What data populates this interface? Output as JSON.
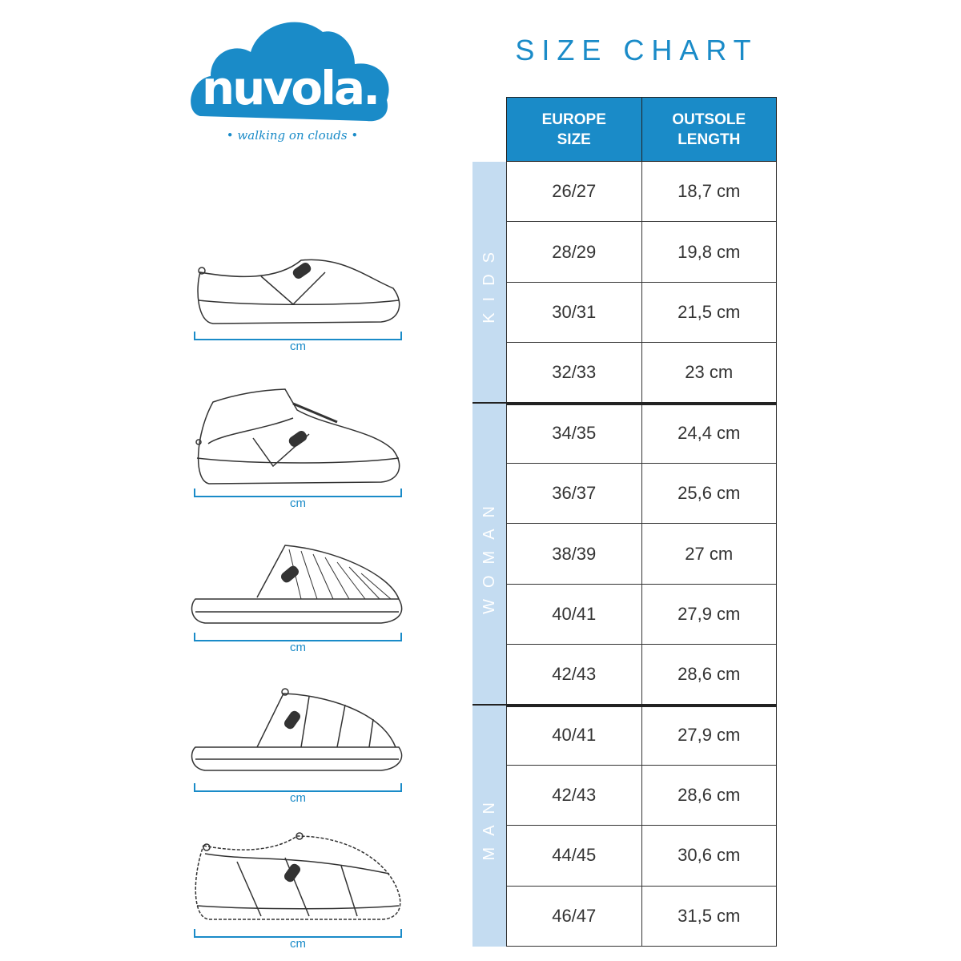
{
  "brand": {
    "logo_text": "nuvola.",
    "tagline": "• walking on clouds •",
    "color": "#1a8bc8"
  },
  "title": "SIZE CHART",
  "table": {
    "headers": [
      "EUROPE\nSIZE",
      "OUTSOLE\nLENGTH"
    ],
    "groups": [
      {
        "label": "KIDS",
        "rows": [
          [
            "26/27",
            "18,7 cm"
          ],
          [
            "28/29",
            "19,8 cm"
          ],
          [
            "30/31",
            "21,5 cm"
          ],
          [
            "32/33",
            "23 cm"
          ]
        ]
      },
      {
        "label": "WOMAN",
        "rows": [
          [
            "34/35",
            "24,4 cm"
          ],
          [
            "36/37",
            "25,6 cm"
          ],
          [
            "38/39",
            "27 cm"
          ],
          [
            "40/41",
            "27,9 cm"
          ],
          [
            "42/43",
            "28,6 cm"
          ]
        ]
      },
      {
        "label": "MAN",
        "rows": [
          [
            "40/41",
            "27,9 cm"
          ],
          [
            "42/43",
            "28,6 cm"
          ],
          [
            "44/45",
            "30,6 cm"
          ],
          [
            "46/47",
            "31,5 cm"
          ]
        ]
      }
    ]
  },
  "shoes": [
    {
      "unit": "cm"
    },
    {
      "unit": "cm"
    },
    {
      "unit": "cm"
    },
    {
      "unit": "cm"
    },
    {
      "unit": "cm"
    }
  ],
  "colors": {
    "header": "#1a8bc8",
    "band": "#c4dcf1"
  }
}
